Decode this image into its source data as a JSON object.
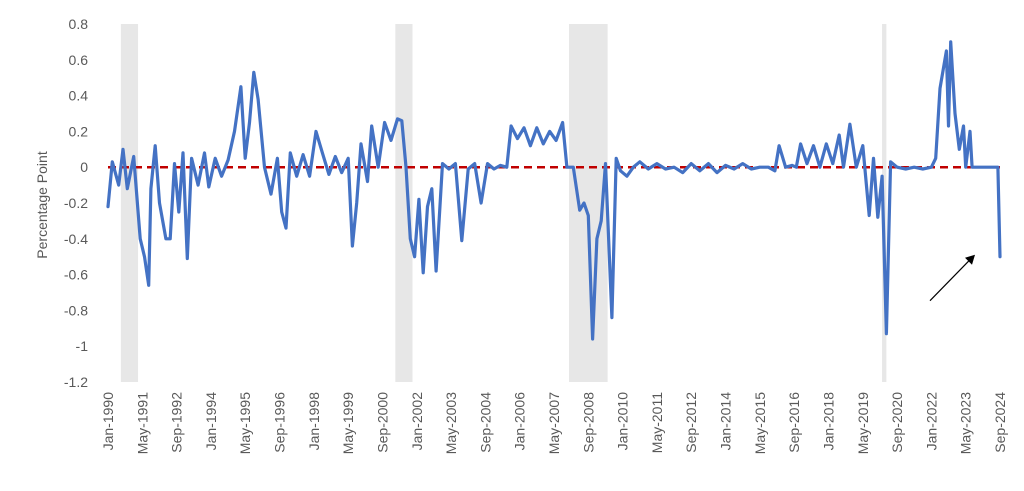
{
  "chart_data": {
    "type": "line",
    "title": "",
    "xlabel": "",
    "ylabel": "Percentage Point",
    "ylim": [
      -1.2,
      0.8
    ],
    "yticks": [
      "0.8",
      "0.6",
      "0.4",
      "0.2",
      "0",
      "-0.2",
      "-0.4",
      "-0.6",
      "-0.8",
      "-1",
      "-1.2"
    ],
    "xlim": [
      "Jan-1990",
      "Sep-2024"
    ],
    "xticks": [
      "Jan-1990",
      "May-1991",
      "Sep-1992",
      "Jan-1994",
      "May-1995",
      "Sep-1996",
      "Jan-1998",
      "May-1999",
      "Sep-2000",
      "Jan-2002",
      "May-2003",
      "Sep-2004",
      "Jan-2006",
      "May-2007",
      "Sep-2008",
      "Jan-2010",
      "May-2011",
      "Sep-2012",
      "Jan-2014",
      "May-2015",
      "Sep-2016",
      "Jan-2018",
      "May-2019",
      "Sep-2020",
      "Jan-2022",
      "May-2023",
      "Sep-2024"
    ],
    "grid": false,
    "legend": "none",
    "colors": {
      "series": "#4472C4",
      "reference": "#C00000",
      "shading": "#E7E7E7"
    },
    "recessions": [
      [
        "Jul-1990",
        "Mar-1991"
      ],
      [
        "Mar-2001",
        "Nov-2001"
      ],
      [
        "Dec-2007",
        "Jun-2009"
      ],
      [
        "Feb-2020",
        "Apr-2020"
      ]
    ],
    "reference_line": {
      "y": 0,
      "style": "dashed"
    },
    "annotation": {
      "type": "arrow",
      "points_to": [
        "Sep-2024",
        -0.5
      ]
    },
    "series": [
      {
        "values_points": [
          [
            "Jan-1990",
            -0.22
          ],
          [
            "Mar-1990",
            0.03
          ],
          [
            "Jun-1990",
            -0.1
          ],
          [
            "Aug-1990",
            0.1
          ],
          [
            "Oct-1990",
            -0.12
          ],
          [
            "Jan-1991",
            0.06
          ],
          [
            "Apr-1991",
            -0.4
          ],
          [
            "Jun-1991",
            -0.5
          ],
          [
            "Aug-1991",
            -0.66
          ],
          [
            "Sep-1991",
            -0.12
          ],
          [
            "Nov-1991",
            0.12
          ],
          [
            "Jan-1992",
            -0.2
          ],
          [
            "Apr-1992",
            -0.4
          ],
          [
            "Jun-1992",
            -0.4
          ],
          [
            "Aug-1992",
            0.02
          ],
          [
            "Oct-1992",
            -0.25
          ],
          [
            "Dec-1992",
            0.08
          ],
          [
            "Feb-1993",
            -0.51
          ],
          [
            "Apr-1993",
            0.05
          ],
          [
            "Jul-1993",
            -0.1
          ],
          [
            "Oct-1993",
            0.08
          ],
          [
            "Dec-1993",
            -0.11
          ],
          [
            "Mar-1994",
            0.05
          ],
          [
            "Jun-1994",
            -0.05
          ],
          [
            "Sep-1994",
            0.04
          ],
          [
            "Dec-1994",
            0.2
          ],
          [
            "Mar-1995",
            0.45
          ],
          [
            "May-1995",
            0.05
          ],
          [
            "Jul-1995",
            0.25
          ],
          [
            "Sep-1995",
            0.53
          ],
          [
            "Nov-1995",
            0.38
          ],
          [
            "Feb-1996",
            0.0
          ],
          [
            "May-1996",
            -0.15
          ],
          [
            "Aug-1996",
            0.05
          ],
          [
            "Oct-1996",
            -0.25
          ],
          [
            "Dec-1996",
            -0.34
          ],
          [
            "Feb-1997",
            0.08
          ],
          [
            "May-1997",
            -0.05
          ],
          [
            "Aug-1997",
            0.07
          ],
          [
            "Nov-1997",
            -0.05
          ],
          [
            "Feb-1998",
            0.2
          ],
          [
            "May-1998",
            0.08
          ],
          [
            "Aug-1998",
            -0.04
          ],
          [
            "Nov-1998",
            0.06
          ],
          [
            "Feb-1999",
            -0.03
          ],
          [
            "May-1999",
            0.05
          ],
          [
            "Jul-1999",
            -0.44
          ],
          [
            "Sep-1999",
            -0.2
          ],
          [
            "Nov-1999",
            0.13
          ],
          [
            "Feb-2000",
            -0.08
          ],
          [
            "Apr-2000",
            0.23
          ],
          [
            "Jul-2000",
            0.0
          ],
          [
            "Oct-2000",
            0.25
          ],
          [
            "Jan-2001",
            0.15
          ],
          [
            "Apr-2001",
            0.27
          ],
          [
            "Jun-2001",
            0.26
          ],
          [
            "Aug-2001",
            0.0
          ],
          [
            "Oct-2001",
            -0.4
          ],
          [
            "Dec-2001",
            -0.5
          ],
          [
            "Feb-2002",
            -0.18
          ],
          [
            "Apr-2002",
            -0.59
          ],
          [
            "Jun-2002",
            -0.22
          ],
          [
            "Aug-2002",
            -0.12
          ],
          [
            "Oct-2002",
            -0.58
          ],
          [
            "Jan-2003",
            0.02
          ],
          [
            "Apr-2003",
            -0.01
          ],
          [
            "Jul-2003",
            0.02
          ],
          [
            "Oct-2003",
            -0.41
          ],
          [
            "Jan-2004",
            -0.01
          ],
          [
            "Apr-2004",
            0.02
          ],
          [
            "Jul-2004",
            -0.2
          ],
          [
            "Oct-2004",
            0.02
          ],
          [
            "Jan-2005",
            -0.01
          ],
          [
            "Apr-2005",
            0.01
          ],
          [
            "Jul-2005",
            0.0
          ],
          [
            "Sep-2005",
            0.23
          ],
          [
            "Dec-2005",
            0.16
          ],
          [
            "Mar-2006",
            0.22
          ],
          [
            "Jun-2006",
            0.12
          ],
          [
            "Sep-2006",
            0.22
          ],
          [
            "Dec-2006",
            0.13
          ],
          [
            "Mar-2007",
            0.2
          ],
          [
            "Jun-2007",
            0.15
          ],
          [
            "Sep-2007",
            0.25
          ],
          [
            "Nov-2007",
            0.0
          ],
          [
            "Feb-2008",
            0.0
          ],
          [
            "May-2008",
            -0.24
          ],
          [
            "Jul-2008",
            -0.2
          ],
          [
            "Sep-2008",
            -0.27
          ],
          [
            "Nov-2008",
            -0.96
          ],
          [
            "Jan-2009",
            -0.4
          ],
          [
            "Mar-2009",
            -0.3
          ],
          [
            "May-2009",
            0.02
          ],
          [
            "Aug-2009",
            -0.84
          ],
          [
            "Oct-2009",
            0.05
          ],
          [
            "Dec-2009",
            -0.02
          ],
          [
            "Mar-2010",
            -0.05
          ],
          [
            "Jun-2010",
            0.0
          ],
          [
            "Sep-2010",
            0.03
          ],
          [
            "Jan-2011",
            -0.01
          ],
          [
            "May-2011",
            0.02
          ],
          [
            "Sep-2011",
            -0.01
          ],
          [
            "Jan-2012",
            0.0
          ],
          [
            "May-2012",
            -0.03
          ],
          [
            "Sep-2012",
            0.02
          ],
          [
            "Jan-2013",
            -0.02
          ],
          [
            "May-2013",
            0.02
          ],
          [
            "Sep-2013",
            -0.03
          ],
          [
            "Jan-2014",
            0.01
          ],
          [
            "May-2014",
            -0.01
          ],
          [
            "Sep-2014",
            0.02
          ],
          [
            "Jan-2015",
            -0.01
          ],
          [
            "May-2015",
            0.0
          ],
          [
            "Sep-2015",
            0.0
          ],
          [
            "Dec-2015",
            -0.02
          ],
          [
            "Feb-2016",
            0.12
          ],
          [
            "May-2016",
            0.0
          ],
          [
            "Aug-2016",
            0.01
          ],
          [
            "Oct-2016",
            0.0
          ],
          [
            "Dec-2016",
            0.13
          ],
          [
            "Mar-2017",
            0.02
          ],
          [
            "Jun-2017",
            0.12
          ],
          [
            "Sep-2017",
            0.0
          ],
          [
            "Dec-2017",
            0.13
          ],
          [
            "Mar-2018",
            0.02
          ],
          [
            "Jun-2018",
            0.18
          ],
          [
            "Aug-2018",
            0.0
          ],
          [
            "Nov-2018",
            0.24
          ],
          [
            "Feb-2019",
            0.0
          ],
          [
            "May-2019",
            0.12
          ],
          [
            "Aug-2019",
            -0.27
          ],
          [
            "Oct-2019",
            0.05
          ],
          [
            "Dec-2019",
            -0.28
          ],
          [
            "Feb-2020",
            -0.05
          ],
          [
            "Apr-2020",
            -0.93
          ],
          [
            "Jun-2020",
            0.03
          ],
          [
            "Sep-2020",
            0.0
          ],
          [
            "Jan-2021",
            -0.01
          ],
          [
            "May-2021",
            0.0
          ],
          [
            "Sep-2021",
            -0.01
          ],
          [
            "Jan-2022",
            0.0
          ],
          [
            "Mar-2022",
            0.05
          ],
          [
            "May-2022",
            0.44
          ],
          [
            "Aug-2022",
            0.65
          ],
          [
            "Sep-2022",
            0.23
          ],
          [
            "Oct-2022",
            0.7
          ],
          [
            "Dec-2022",
            0.3
          ],
          [
            "Feb-2023",
            0.1
          ],
          [
            "Apr-2023",
            0.23
          ],
          [
            "May-2023",
            0.0
          ],
          [
            "Jul-2023",
            0.2
          ],
          [
            "Aug-2023",
            0.0
          ],
          [
            "Dec-2023",
            0.0
          ],
          [
            "Apr-2024",
            0.0
          ],
          [
            "Aug-2024",
            0.0
          ],
          [
            "Sep-2024",
            -0.5
          ]
        ]
      }
    ]
  }
}
